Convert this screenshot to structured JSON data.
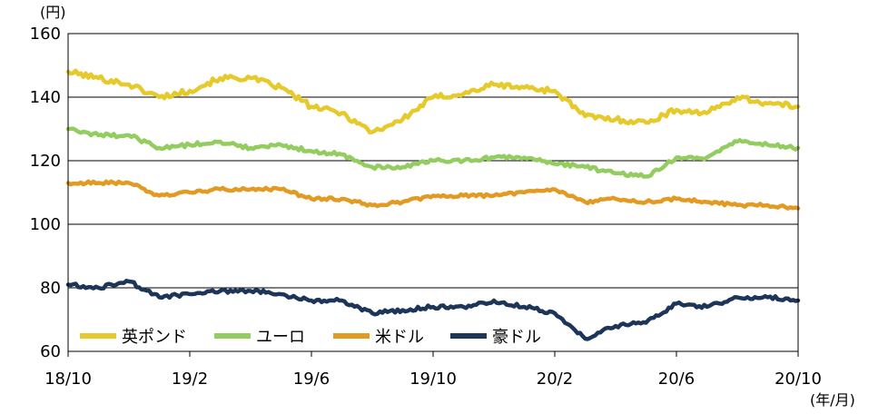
{
  "chart_data": {
    "type": "line",
    "y_unit": "(円)",
    "x_unit": "(年/月)",
    "ylim": [
      60,
      160
    ],
    "y_ticks": [
      "160",
      "140",
      "120",
      "100",
      "80",
      "60"
    ],
    "x_ticks": [
      "18/10",
      "19/2",
      "19/6",
      "19/10",
      "20/2",
      "20/6",
      "20/10"
    ],
    "grid": "horizontal",
    "legend_position": "bottom-left",
    "x": [
      "18/10",
      "18/11",
      "18/12",
      "19/1",
      "19/2",
      "19/3",
      "19/4",
      "19/5",
      "19/6",
      "19/7",
      "19/8",
      "19/9",
      "19/10",
      "19/11",
      "19/12",
      "20/1",
      "20/2",
      "20/3",
      "20/4",
      "20/5",
      "20/6",
      "20/7",
      "20/8",
      "20/9",
      "20/10"
    ],
    "series": [
      {
        "name": "英ポンド",
        "color": "#e6c92b",
        "values": [
          148,
          146,
          144,
          140,
          142,
          146,
          146,
          143,
          137,
          135,
          129,
          133,
          140,
          141,
          144,
          143,
          142,
          134,
          133,
          132,
          136,
          135,
          140,
          138,
          137
        ]
      },
      {
        "name": "ユーロ",
        "color": "#93cd5f",
        "values": [
          130,
          128,
          128,
          124,
          125,
          126,
          124,
          125,
          123,
          122,
          118,
          118,
          120,
          120,
          121,
          121,
          119,
          118,
          116,
          115,
          121,
          121,
          126,
          125,
          124
        ]
      },
      {
        "name": "米ドル",
        "color": "#e39a22",
        "values": [
          113,
          113,
          113,
          109,
          110,
          111,
          111,
          111,
          108,
          108,
          106,
          107,
          109,
          109,
          109,
          110,
          111,
          107,
          108,
          107,
          108,
          107,
          106,
          106,
          105
        ]
      },
      {
        "name": "豪ドル",
        "color": "#1d3559",
        "values": [
          81,
          80,
          82,
          77,
          78,
          79,
          79,
          78,
          76,
          76,
          72,
          73,
          74,
          74,
          76,
          74,
          72,
          64,
          68,
          69,
          75,
          74,
          77,
          77,
          76
        ]
      }
    ]
  }
}
